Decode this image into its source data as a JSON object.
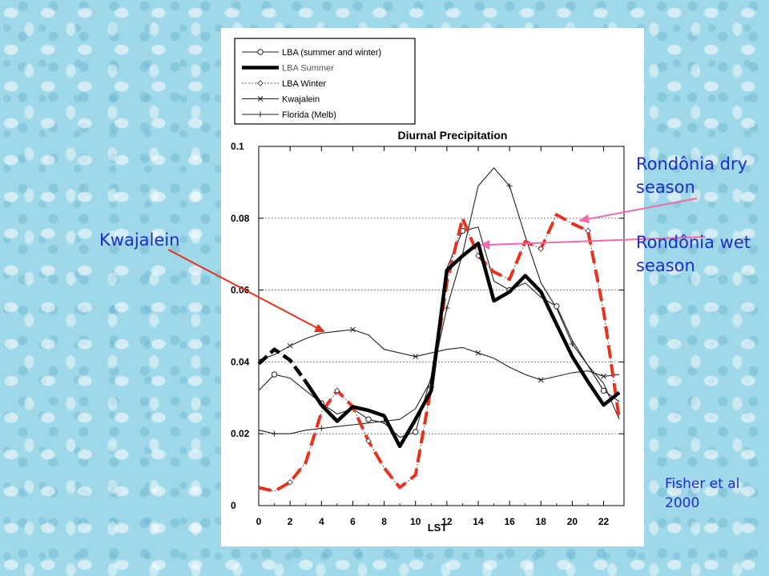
{
  "chart_data": {
    "type": "line",
    "title": "Diurnal Precipitation",
    "xlabel": "LST",
    "ylabel": "",
    "xlim": [
      0,
      23.3
    ],
    "ylim": [
      0,
      0.1
    ],
    "x_ticks": [
      0,
      2,
      4,
      6,
      8,
      10,
      12,
      14,
      16,
      18,
      20,
      22
    ],
    "y_ticks": [
      0,
      0.02,
      0.04,
      0.06,
      0.08,
      0.1
    ],
    "y_tick_labels": [
      "0",
      "0.02",
      "0.04",
      "0.06",
      "0.08",
      "0.1"
    ],
    "grid": "horizontal-dotted",
    "legend_position": "top-left",
    "colors": {
      "overlay_dry": "#e8321e",
      "annotation": "#1f2cc8",
      "arrow": "#f06aa8"
    },
    "series": [
      {
        "name": "LBA (summer and winter)",
        "style": "thin-circle",
        "x": [
          0,
          1,
          2,
          3,
          4,
          5,
          6,
          7,
          8,
          9,
          10,
          11,
          12,
          13,
          14,
          15,
          16,
          17,
          18,
          19,
          20,
          21,
          22,
          23
        ],
        "values": [
          0.032,
          0.0365,
          0.0355,
          0.032,
          0.0285,
          0.0255,
          0.027,
          0.024,
          0.023,
          0.019,
          0.0205,
          0.036,
          0.066,
          0.0765,
          0.0775,
          0.0625,
          0.06,
          0.062,
          0.058,
          0.0555,
          0.046,
          0.039,
          0.032,
          0.029
        ]
      },
      {
        "name": "LBA Summer",
        "style": "thick-dashed-black",
        "x": [
          0,
          1,
          2,
          3,
          4,
          5,
          6,
          7,
          8,
          9,
          10,
          11,
          12,
          13,
          14,
          15,
          16,
          17,
          18,
          19,
          20,
          21,
          22,
          23
        ],
        "values": [
          0.0395,
          0.0435,
          0.0405,
          0.0345,
          0.028,
          0.0235,
          0.0275,
          0.0265,
          0.025,
          0.0165,
          0.024,
          0.032,
          0.0655,
          0.0695,
          0.073,
          0.057,
          0.0595,
          0.064,
          0.0595,
          0.0505,
          0.0415,
          0.0345,
          0.028,
          0.0315
        ]
      },
      {
        "name": "LBA Winter",
        "style": "thin-dotted-diamond",
        "x": [
          0,
          1,
          2,
          3,
          4,
          5,
          6,
          7,
          8,
          9,
          10,
          11,
          12,
          13,
          14,
          15,
          16,
          17,
          18,
          19,
          20,
          21,
          22,
          23
        ],
        "values": [
          0.005,
          0.004,
          0.0065,
          0.012,
          0.026,
          0.032,
          0.0275,
          0.018,
          0.0105,
          0.005,
          0.0085,
          0.033,
          0.062,
          0.08,
          0.0695,
          0.065,
          0.063,
          0.0735,
          0.0715,
          0.081,
          0.0785,
          0.0765,
          0.054,
          0.024
        ]
      },
      {
        "name": "Kwajalein",
        "style": "thin-x",
        "x": [
          0,
          1,
          2,
          3,
          4,
          5,
          6,
          7,
          8,
          9,
          10,
          11,
          12,
          13,
          14,
          15,
          16,
          17,
          18,
          19,
          20,
          21,
          22,
          23
        ],
        "values": [
          0.0405,
          0.042,
          0.0445,
          0.0465,
          0.048,
          0.0485,
          0.049,
          0.0475,
          0.0435,
          0.0425,
          0.0415,
          0.0425,
          0.0435,
          0.044,
          0.0425,
          0.041,
          0.0385,
          0.0365,
          0.035,
          0.036,
          0.037,
          0.0375,
          0.036,
          0.0365
        ]
      },
      {
        "name": "Florida (Melb)",
        "style": "thin-plus",
        "x": [
          0,
          1,
          2,
          3,
          4,
          5,
          6,
          7,
          8,
          9,
          10,
          11,
          12,
          13,
          14,
          15,
          16,
          17,
          18,
          19,
          20,
          21,
          22,
          23
        ],
        "values": [
          0.021,
          0.02,
          0.02,
          0.021,
          0.0215,
          0.022,
          0.0225,
          0.023,
          0.0235,
          0.024,
          0.027,
          0.035,
          0.055,
          0.07,
          0.089,
          0.094,
          0.089,
          0.075,
          0.062,
          0.055,
          0.045,
          0.039,
          0.034,
          0.024
        ]
      }
    ]
  },
  "annotations": {
    "kwajalein": "Kwajalein",
    "dry_line1": "Rondônia dry",
    "dry_line2": "season",
    "wet_line1": "Rondônia wet",
    "wet_line2": "season",
    "credit_line1": "Fisher et al",
    "credit_line2": "2000"
  }
}
